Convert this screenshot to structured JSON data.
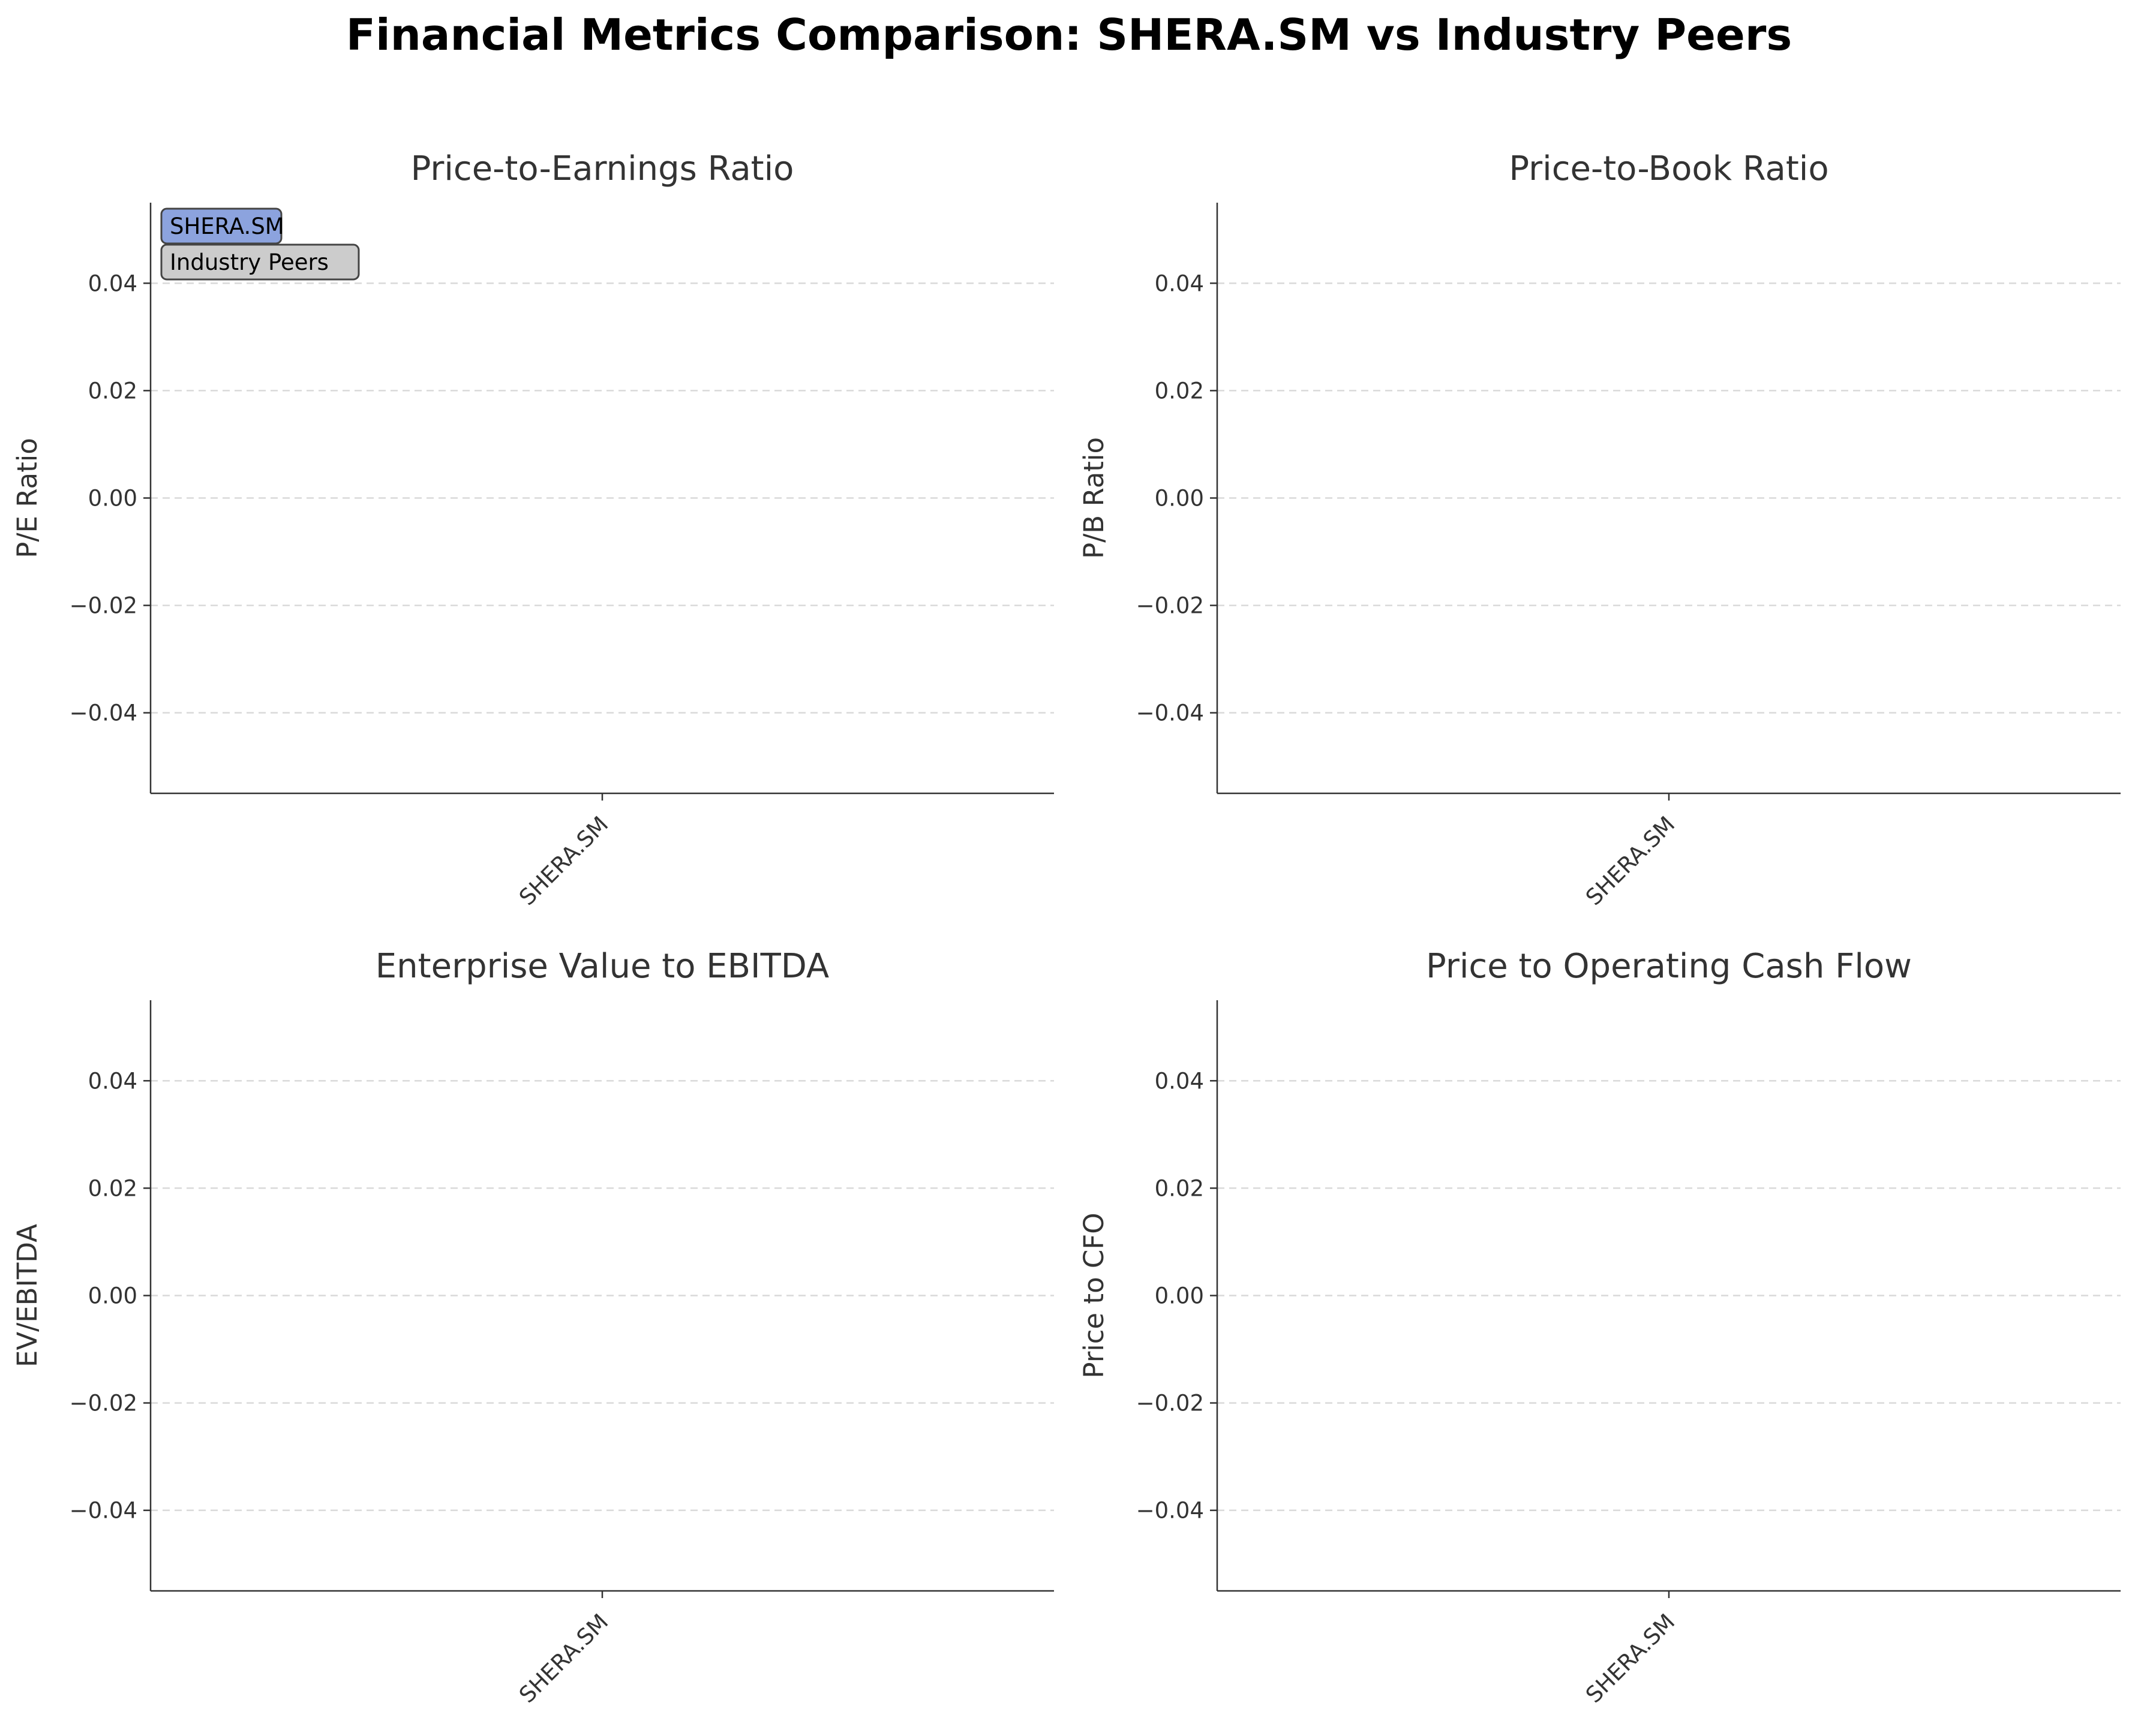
{
  "title": "Financial Metrics Comparison: SHERA.SM vs Industry Peers",
  "chart_data": [
    {
      "type": "bar",
      "title": "Price-to-Earnings Ratio",
      "xlabel": "",
      "ylabel": "P/E Ratio",
      "categories": [
        "SHERA.SM"
      ],
      "series": [],
      "ylim": [
        -0.055,
        0.055
      ],
      "yticks": [
        -0.04,
        -0.02,
        0.0,
        0.02,
        0.04
      ],
      "yticklabels": [
        "−0.04",
        "−0.02",
        "0.00",
        "0.02",
        "0.04"
      ],
      "grid": true,
      "legend": {
        "placement": "upper-left",
        "entries": [
          {
            "label": "SHERA.SM",
            "color": "#8ca3de"
          },
          {
            "label": "Industry Peers",
            "color": "#cccccc"
          }
        ]
      }
    },
    {
      "type": "bar",
      "title": "Price-to-Book Ratio",
      "xlabel": "",
      "ylabel": "P/B Ratio",
      "categories": [
        "SHERA.SM"
      ],
      "series": [],
      "ylim": [
        -0.055,
        0.055
      ],
      "yticks": [
        -0.04,
        -0.02,
        0.0,
        0.02,
        0.04
      ],
      "yticklabels": [
        "−0.04",
        "−0.02",
        "0.00",
        "0.02",
        "0.04"
      ],
      "grid": true,
      "legend": null
    },
    {
      "type": "bar",
      "title": "Enterprise Value to EBITDA",
      "xlabel": "",
      "ylabel": "EV/EBITDA",
      "categories": [
        "SHERA.SM"
      ],
      "series": [],
      "ylim": [
        -0.055,
        0.055
      ],
      "yticks": [
        -0.04,
        -0.02,
        0.0,
        0.02,
        0.04
      ],
      "yticklabels": [
        "−0.04",
        "−0.02",
        "0.00",
        "0.02",
        "0.04"
      ],
      "grid": true,
      "legend": null
    },
    {
      "type": "bar",
      "title": "Price to Operating Cash Flow",
      "xlabel": "",
      "ylabel": "Price to CFO",
      "categories": [
        "SHERA.SM"
      ],
      "series": [],
      "ylim": [
        -0.055,
        0.055
      ],
      "yticks": [
        -0.04,
        -0.02,
        0.0,
        0.02,
        0.04
      ],
      "yticklabels": [
        "−0.04",
        "−0.02",
        "0.00",
        "0.02",
        "0.04"
      ],
      "grid": true,
      "legend": null
    }
  ]
}
